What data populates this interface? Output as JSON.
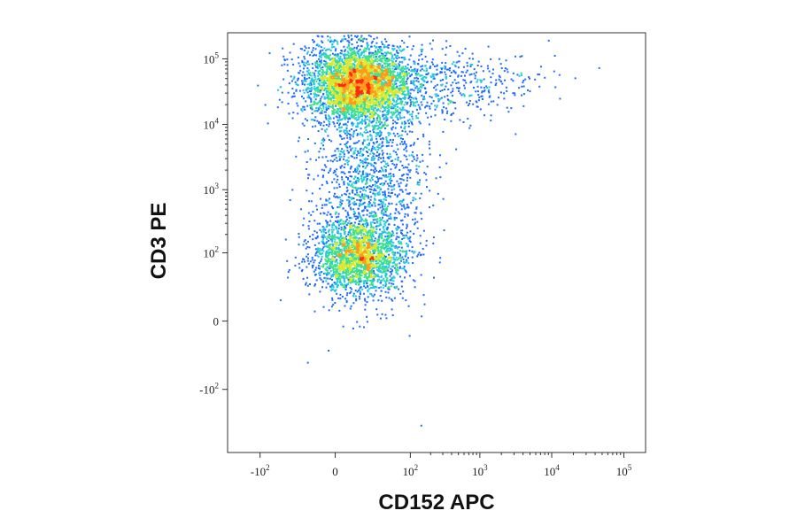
{
  "chart_data": {
    "type": "scatter",
    "style": "flow-cytometry pseudocolor density dot plot",
    "xlabel": "CD152 APC",
    "ylabel": "CD3 PE",
    "x_scale": "biexponential (logicle)",
    "y_scale": "biexponential (logicle)",
    "xlim": [
      -300,
      200000
    ],
    "ylim": [
      -1000,
      250000
    ],
    "grid": false,
    "legend": "none",
    "color_scale": [
      "#0a1fbf",
      "#1e6bff",
      "#22c9e0",
      "#3fe08a",
      "#d9e82a",
      "#ff9a1a",
      "#ff2a10"
    ],
    "x_ticks": [
      {
        "base": "-10",
        "exp": "2",
        "value": -100
      },
      {
        "base": "0",
        "exp": "",
        "value": 0
      },
      {
        "base": "10",
        "exp": "2",
        "value": 100
      },
      {
        "base": "10",
        "exp": "3",
        "value": 1000
      },
      {
        "base": "10",
        "exp": "4",
        "value": 10000
      },
      {
        "base": "10",
        "exp": "5",
        "value": 100000
      }
    ],
    "y_ticks": [
      {
        "base": "-10",
        "exp": "2",
        "value": -100
      },
      {
        "base": "0",
        "exp": "",
        "value": 0
      },
      {
        "base": "10",
        "exp": "2",
        "value": 100
      },
      {
        "base": "10",
        "exp": "3",
        "value": 1000
      },
      {
        "base": "10",
        "exp": "4",
        "value": 10000
      },
      {
        "base": "10",
        "exp": "5",
        "value": 100000
      }
    ],
    "populations": [
      {
        "x": 10,
        "y": 45000,
        "density": "highest"
      },
      {
        "x": 10,
        "y": 90,
        "density": "high"
      },
      {
        "x": 20,
        "y": 1500,
        "density": "low (bridge between populations)"
      },
      {
        "x": 600,
        "y": 40000,
        "density": "sparse tail"
      }
    ]
  }
}
